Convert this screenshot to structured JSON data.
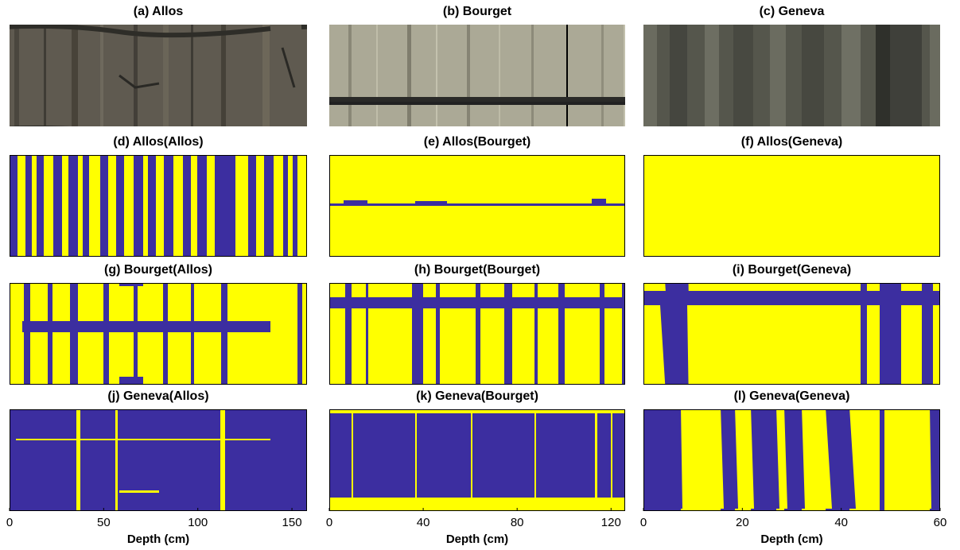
{
  "colors": {
    "class_a": "#3c2ea0",
    "class_b": "#ffff00",
    "frame": "#000000",
    "photo_allos": "#5f5a50",
    "photo_bourget": "#a9a795",
    "photo_geneva": "#54554b"
  },
  "rows": [
    {
      "kind": "photo",
      "panels": [
        {
          "title": "(a) Allos",
          "core": "allos",
          "texture": "photo_allos"
        },
        {
          "title": "(b) Bourget",
          "core": "bourget",
          "texture": "photo_bourget"
        },
        {
          "title": "(c) Geneva",
          "core": "geneva",
          "texture": "photo_geneva"
        }
      ]
    },
    {
      "kind": "classification",
      "panels": [
        {
          "title": "(d) Allos(Allos)",
          "core": "allos",
          "texture": "allos_allos"
        },
        {
          "title": "(e) Allos(Bourget)",
          "core": "bourget",
          "texture": "allos_bourget"
        },
        {
          "title": "(f) Allos(Geneva)",
          "core": "geneva",
          "texture": "allos_geneva"
        }
      ]
    },
    {
      "kind": "classification",
      "panels": [
        {
          "title": "(g) Bourget(Allos)",
          "core": "allos",
          "texture": "bourget_allos"
        },
        {
          "title": "(h) Bourget(Bourget)",
          "core": "bourget",
          "texture": "bourget_bourget"
        },
        {
          "title": "(i) Bourget(Geneva)",
          "core": "geneva",
          "texture": "bourget_geneva"
        }
      ]
    },
    {
      "kind": "classification",
      "panels": [
        {
          "title": "(j) Geneva(Allos)",
          "core": "allos",
          "texture": "geneva_allos"
        },
        {
          "title": "(k) Geneva(Bourget)",
          "core": "bourget",
          "texture": "geneva_bourget"
        },
        {
          "title": "(l) Geneva(Geneva)",
          "core": "geneva",
          "texture": "geneva_geneva"
        }
      ]
    }
  ],
  "axes": [
    {
      "core": "allos",
      "xlabel": "Depth (cm)",
      "xlim": [
        0,
        158
      ],
      "ticks": [
        0,
        50,
        100,
        150
      ]
    },
    {
      "core": "bourget",
      "xlabel": "Depth (cm)",
      "xlim": [
        0,
        126
      ],
      "ticks": [
        0,
        40,
        80,
        120
      ]
    },
    {
      "core": "geneva",
      "xlabel": "Depth (cm)",
      "xlim": [
        0,
        60
      ],
      "ticks": [
        0,
        20,
        40,
        60
      ]
    }
  ]
}
